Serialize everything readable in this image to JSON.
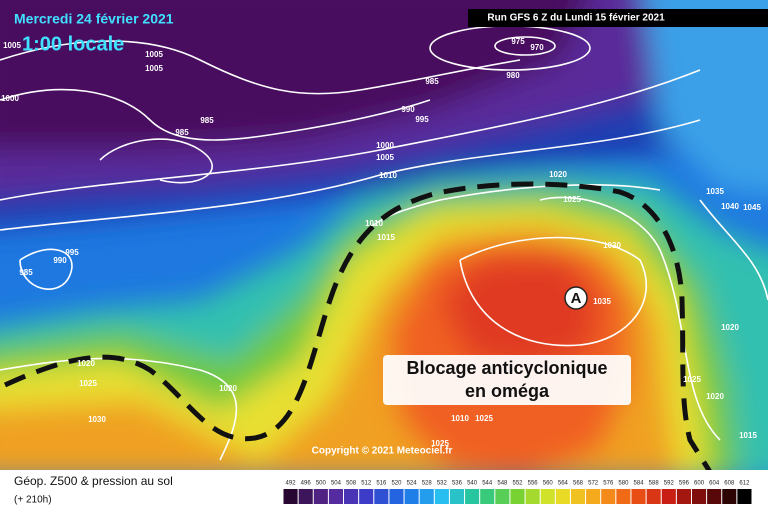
{
  "header": {
    "date": "Mercredi 24 février 2021",
    "time": "1:00 locale",
    "run": "Run GFS 6 Z du Lundi 15 février 2021"
  },
  "annotation": {
    "line1": "Blocage anticyclonique",
    "line2": "en oméga",
    "marker": "A"
  },
  "copyright": "Copyright © 2021 Meteociel.fr",
  "isobar_labels": [
    "1005",
    "1005",
    "1000",
    "1005",
    "985",
    "985",
    "985",
    "975",
    "970",
    "980",
    "990",
    "995",
    "1000",
    "1005",
    "1010",
    "1010",
    "1015",
    "1020",
    "1025",
    "1030",
    "1035",
    "1035",
    "1040",
    "1045",
    "1020",
    "995",
    "990",
    "985",
    "1020",
    "1025",
    "1030",
    "1020",
    "1025",
    "1020",
    "1015",
    "1010",
    "1025",
    "1025"
  ],
  "legend": {
    "title": "Géop. Z500 & pression au sol",
    "subtitle": "(+ 210h)",
    "scale": [
      492,
      496,
      500,
      504,
      508,
      512,
      516,
      520,
      524,
      528,
      532,
      536,
      540,
      544,
      548,
      552,
      556,
      560,
      564,
      568,
      572,
      576,
      580,
      584,
      588,
      592,
      596,
      600,
      604,
      608,
      612
    ]
  }
}
